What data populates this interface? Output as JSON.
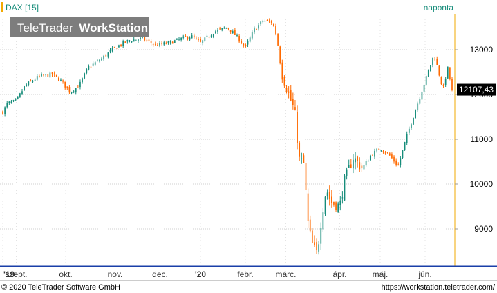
{
  "chart_data": {
    "type": "candlestick",
    "instrument_label": "DAX [15]",
    "interval_label": "naponta",
    "logo": {
      "text_light": "TeleTrader",
      "text_bold": "WorkStation"
    },
    "last_price_label": "12107,43",
    "y_ticks": [
      9000,
      10000,
      11000,
      12000,
      13000
    ],
    "ylim": [
      8200,
      13800
    ],
    "x_ticks": [
      {
        "label": "'19",
        "bold": true,
        "t": 0.0
      },
      {
        "label": "szept.",
        "bold": false,
        "t": 0.03
      },
      {
        "label": "okt.",
        "bold": false,
        "t": 0.14
      },
      {
        "label": "nov.",
        "bold": false,
        "t": 0.25
      },
      {
        "label": "dec.",
        "bold": false,
        "t": 0.35
      },
      {
        "label": "'20",
        "bold": true,
        "t": 0.44
      },
      {
        "label": "febr.",
        "bold": false,
        "t": 0.54
      },
      {
        "label": "márc.",
        "bold": false,
        "t": 0.63
      },
      {
        "label": "ápr.",
        "bold": false,
        "t": 0.75
      },
      {
        "label": "máj.",
        "bold": false,
        "t": 0.84
      },
      {
        "label": "jún.",
        "bold": false,
        "t": 0.94
      }
    ],
    "close_anchors": [
      [
        0.0,
        11600
      ],
      [
        0.01,
        11800
      ],
      [
        0.03,
        11850
      ],
      [
        0.05,
        12200
      ],
      [
        0.08,
        12400
      ],
      [
        0.11,
        12450
      ],
      [
        0.13,
        12300
      ],
      [
        0.15,
        12050
      ],
      [
        0.17,
        12200
      ],
      [
        0.19,
        12600
      ],
      [
        0.22,
        12800
      ],
      [
        0.25,
        13050
      ],
      [
        0.28,
        13200
      ],
      [
        0.31,
        13250
      ],
      [
        0.34,
        13100
      ],
      [
        0.37,
        13150
      ],
      [
        0.4,
        13250
      ],
      [
        0.42,
        13300
      ],
      [
        0.44,
        13150
      ],
      [
        0.47,
        13400
      ],
      [
        0.5,
        13500
      ],
      [
        0.52,
        13300
      ],
      [
        0.54,
        13050
      ],
      [
        0.56,
        13450
      ],
      [
        0.58,
        13650
      ],
      [
        0.6,
        13600
      ],
      [
        0.61,
        13300
      ],
      [
        0.62,
        12500
      ],
      [
        0.64,
        11900
      ],
      [
        0.65,
        11600
      ],
      [
        0.66,
        10550
      ],
      [
        0.67,
        10450
      ],
      [
        0.68,
        9050
      ],
      [
        0.69,
        8600
      ],
      [
        0.7,
        8450
      ],
      [
        0.71,
        9300
      ],
      [
        0.72,
        9900
      ],
      [
        0.73,
        9600
      ],
      [
        0.75,
        9500
      ],
      [
        0.76,
        10050
      ],
      [
        0.78,
        10600
      ],
      [
        0.8,
        10350
      ],
      [
        0.82,
        10650
      ],
      [
        0.84,
        10800
      ],
      [
        0.86,
        10650
      ],
      [
        0.88,
        10400
      ],
      [
        0.9,
        11100
      ],
      [
        0.92,
        11700
      ],
      [
        0.94,
        12300
      ],
      [
        0.96,
        12900
      ],
      [
        0.98,
        12100
      ],
      [
        0.99,
        12600
      ],
      [
        1.0,
        12107
      ]
    ],
    "colors": {
      "up": "#168c7a",
      "down": "#ff6a00",
      "marker": "#f2a900",
      "last_price_box": "#000000",
      "text_accent": "#168c7a",
      "bottom_axis_line": "#1a3fa8",
      "logo_bg": "#7d7d7d"
    }
  },
  "footer": {
    "copyright": "© 2020 TeleTrader Software GmbH",
    "url": "https://workstation.teletrader.com/"
  }
}
